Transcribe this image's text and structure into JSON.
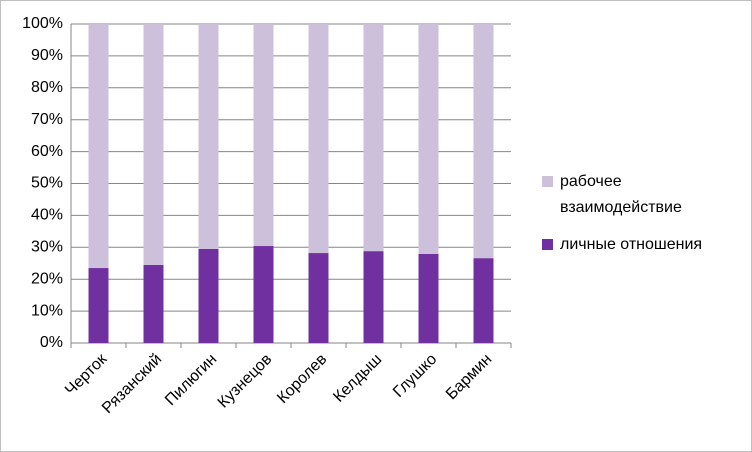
{
  "chart_data": {
    "type": "bar",
    "stacked": true,
    "categories": [
      "Черток",
      "Рязанский",
      "Пилюгин",
      "Кузнецов",
      "Королев",
      "Келдыш",
      "Глушко",
      "Бармин"
    ],
    "series": [
      {
        "name": "личные отношения",
        "color": "#7030a0",
        "values": [
          23.5,
          24.5,
          29.5,
          30.4,
          28.2,
          28.8,
          27.9,
          26.6
        ]
      },
      {
        "name": "рабочее взаимодействие",
        "color": "#ccc0da",
        "values": [
          76.5,
          75.5,
          70.5,
          69.6,
          71.8,
          71.2,
          72.1,
          73.4
        ]
      }
    ],
    "ylim": [
      0,
      100
    ],
    "yticks": [
      {
        "value": 0,
        "label": "0%"
      },
      {
        "value": 10,
        "label": "10%"
      },
      {
        "value": 20,
        "label": "20%"
      },
      {
        "value": 30,
        "label": "30%"
      },
      {
        "value": 40,
        "label": "40%"
      },
      {
        "value": 50,
        "label": "50%"
      },
      {
        "value": 60,
        "label": "60%"
      },
      {
        "value": 70,
        "label": "70%"
      },
      {
        "value": 80,
        "label": "80%"
      },
      {
        "value": 90,
        "label": "90%"
      },
      {
        "value": 100,
        "label": "100%"
      }
    ],
    "grid": true,
    "legend": "right"
  }
}
